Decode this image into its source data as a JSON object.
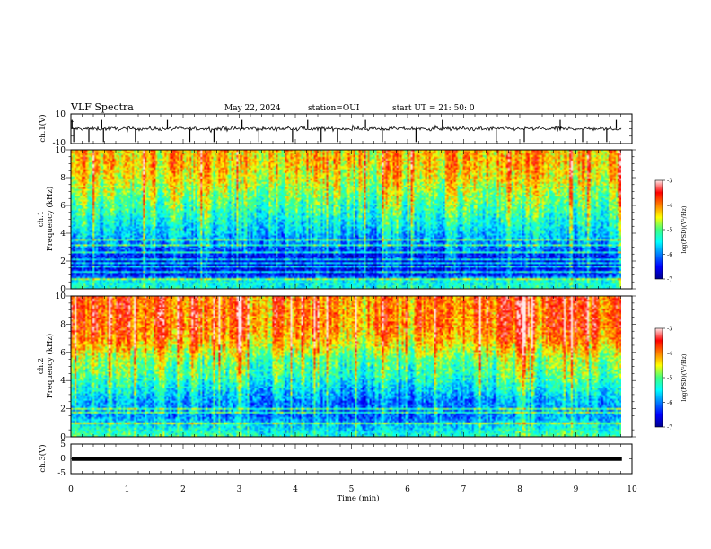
{
  "header": {
    "title": "VLF Spectra",
    "date": "May 22, 2024",
    "station": "station=OUI",
    "start": "start  UT  =   21: 50: 0"
  },
  "chart_data": [
    {
      "type": "line",
      "panel": "ch1-waveform",
      "ylabel": "ch.1(V)",
      "ylim": [
        -10,
        10
      ],
      "yticks": [
        "10",
        "-10"
      ],
      "xlim": [
        0,
        10
      ],
      "baseline": 0,
      "noise_amplitude": 1.5,
      "spike_times_min": [
        0.02,
        0.05,
        0.32,
        0.55,
        0.58,
        1.15,
        1.72,
        2.12,
        2.55,
        3.05,
        3.35,
        3.95,
        4.22,
        4.46,
        4.75,
        5.25,
        5.55,
        6.15,
        6.62,
        7.58,
        8.08,
        8.72,
        9.12,
        9.55,
        9.72
      ]
    },
    {
      "type": "heatmap",
      "panel": "ch1-spectrogram",
      "ylabel": [
        "ch.1",
        "Frequency (kHz)"
      ],
      "ylim": [
        0,
        10
      ],
      "yticks": [
        "0",
        "2",
        "4",
        "6",
        "8",
        "10"
      ],
      "colorbar": {
        "label": "log(PSD)(V²/Hz)",
        "range": [
          -7,
          -3
        ],
        "ticks": [
          "-3",
          "-4",
          "-5",
          "-6",
          "-7"
        ]
      },
      "level_profile": [
        {
          "f_khz": 0.0,
          "level": -5.3
        },
        {
          "f_khz": 0.6,
          "level": -5.4
        },
        {
          "f_khz": 1.0,
          "level": -6.4
        },
        {
          "f_khz": 2.0,
          "level": -6.5
        },
        {
          "f_khz": 3.0,
          "level": -6.0
        },
        {
          "f_khz": 4.0,
          "level": -5.6
        },
        {
          "f_khz": 5.0,
          "level": -5.3
        },
        {
          "f_khz": 6.0,
          "level": -5.0
        },
        {
          "f_khz": 7.0,
          "level": -4.7
        },
        {
          "f_khz": 8.0,
          "level": -4.4
        },
        {
          "f_khz": 9.0,
          "level": -4.2
        },
        {
          "f_khz": 10.0,
          "level": -4.2
        }
      ],
      "tone_lines_khz": [
        0.5,
        0.7,
        1.2,
        1.6,
        1.9,
        2.1,
        2.6,
        3.1,
        3.5
      ],
      "time_variation": [
        {
          "t_min": 0.0,
          "offset": 0.0
        },
        {
          "t_min": 3.5,
          "offset": -0.05
        },
        {
          "t_min": 5.0,
          "offset": -0.1
        },
        {
          "t_min": 7.0,
          "offset": 0.0
        },
        {
          "t_min": 9.8,
          "offset": 0.05
        }
      ]
    },
    {
      "type": "heatmap",
      "panel": "ch2-spectrogram",
      "ylabel": [
        "ch.2",
        "Frequency (kHz)"
      ],
      "ylim": [
        0,
        10
      ],
      "yticks": [
        "0",
        "2",
        "4",
        "6",
        "8",
        "10"
      ],
      "colorbar": {
        "label": "log(PSD)(V²/Hz)",
        "range": [
          -7,
          -3
        ],
        "ticks": [
          "-3",
          "-4",
          "-5",
          "-6",
          "-7"
        ]
      },
      "level_profile": [
        {
          "f_khz": 0.0,
          "level": -5.2
        },
        {
          "f_khz": 0.8,
          "level": -5.6
        },
        {
          "f_khz": 1.5,
          "level": -6.0
        },
        {
          "f_khz": 2.5,
          "level": -5.9
        },
        {
          "f_khz": 3.5,
          "level": -5.5
        },
        {
          "f_khz": 4.5,
          "level": -5.1
        },
        {
          "f_khz": 5.5,
          "level": -4.9
        },
        {
          "f_khz": 6.0,
          "level": -4.6
        },
        {
          "f_khz": 7.0,
          "level": -4.1
        },
        {
          "f_khz": 8.0,
          "level": -3.9
        },
        {
          "f_khz": 10.0,
          "level": -3.9
        }
      ],
      "tone_lines_khz": [
        1.0,
        1.4,
        1.7,
        2.0,
        2.3
      ],
      "time_variation": [
        {
          "t_min": 0.0,
          "offset": 0.15
        },
        {
          "t_min": 2.0,
          "offset": 0.1
        },
        {
          "t_min": 5.0,
          "offset": -0.2
        },
        {
          "t_min": 7.0,
          "offset": -0.1
        },
        {
          "t_min": 8.0,
          "offset": 0.15
        },
        {
          "t_min": 9.8,
          "offset": 0.1
        }
      ]
    },
    {
      "type": "line",
      "panel": "ch3-waveform",
      "ylabel": "ch.3(V)",
      "ylim": [
        -5,
        5
      ],
      "yticks": [
        "5",
        "0",
        "-5"
      ],
      "xlim": [
        0,
        10
      ],
      "x": [
        0,
        9.82
      ],
      "y": [
        0,
        0
      ]
    }
  ],
  "xaxis": {
    "label": "Time (min)",
    "range": [
      0,
      10
    ],
    "data_end_min": 9.82,
    "ticks": [
      "0",
      "1",
      "2",
      "3",
      "4",
      "5",
      "6",
      "7",
      "8",
      "9",
      "10"
    ]
  }
}
